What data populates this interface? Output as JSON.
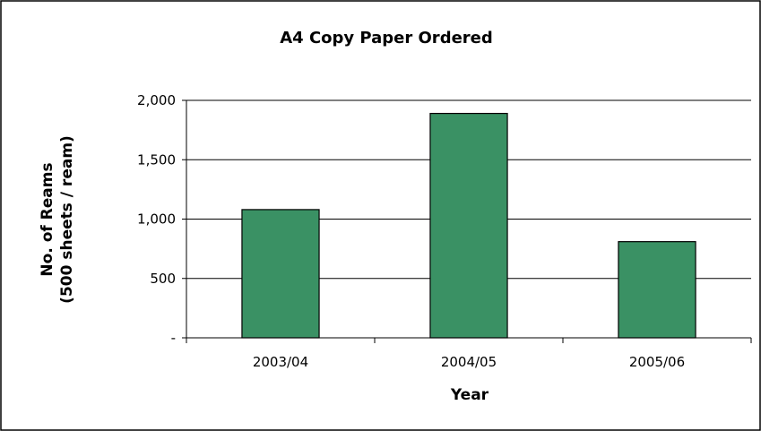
{
  "colors": {
    "bar_fill": "#3a9164",
    "bar_stroke": "#000000",
    "gridline": "#000000",
    "background": "#ffffff",
    "frame": "#000000"
  },
  "chart_data": {
    "type": "bar",
    "title": "A4 Copy Paper Ordered",
    "xlabel": "Year",
    "ylabel_line1": "No. of Reams",
    "ylabel_line2": "(500 sheets / ream)",
    "categories": [
      "2003/04",
      "2004/05",
      "2005/06"
    ],
    "values": [
      1080,
      1890,
      810
    ],
    "ylim": [
      0,
      2000
    ],
    "yticks": [
      0,
      500,
      1000,
      1500,
      2000
    ],
    "ytick_labels": [
      "-",
      "500",
      "1,000",
      "1,500",
      "2,000"
    ],
    "grid": true,
    "legend": "none"
  }
}
